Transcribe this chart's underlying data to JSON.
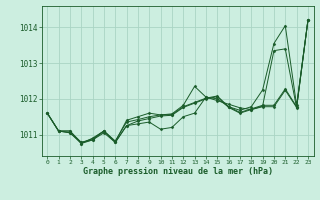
{
  "title": "Graphe pression niveau de la mer (hPa)",
  "bg_color": "#cceee0",
  "plot_bg_color": "#cceee0",
  "grid_color": "#aad4c4",
  "line_color": "#1a5c2a",
  "marker_color": "#1a5c2a",
  "xlim": [
    -0.5,
    23.5
  ],
  "ylim": [
    1010.4,
    1014.6
  ],
  "yticks": [
    1011,
    1012,
    1013,
    1014
  ],
  "xticks": [
    0,
    1,
    2,
    3,
    4,
    5,
    6,
    7,
    8,
    9,
    10,
    11,
    12,
    13,
    14,
    15,
    16,
    17,
    18,
    19,
    20,
    21,
    22,
    23
  ],
  "series": [
    [
      1011.6,
      1011.1,
      1011.1,
      1010.75,
      1010.9,
      1011.1,
      1010.78,
      1011.25,
      1011.3,
      1011.35,
      1011.15,
      1011.2,
      1011.5,
      1011.6,
      1012.05,
      1011.95,
      1011.85,
      1011.75,
      1011.7,
      1011.8,
      1013.35,
      1013.4,
      1011.75,
      1014.2
    ],
    [
      1011.6,
      1011.1,
      1011.1,
      1010.78,
      1010.88,
      1011.1,
      1010.8,
      1011.4,
      1011.5,
      1011.6,
      1011.55,
      1011.58,
      1011.82,
      1012.35,
      1012.05,
      1012.0,
      1011.78,
      1011.68,
      1011.78,
      1012.25,
      1013.55,
      1014.05,
      1011.82,
      1014.2
    ],
    [
      1011.6,
      1011.1,
      1011.05,
      1010.78,
      1010.85,
      1011.1,
      1010.82,
      1011.35,
      1011.42,
      1011.5,
      1011.55,
      1011.56,
      1011.78,
      1011.9,
      1012.02,
      1012.08,
      1011.78,
      1011.62,
      1011.72,
      1011.82,
      1011.82,
      1012.28,
      1011.78,
      1014.2
    ],
    [
      1011.6,
      1011.1,
      1011.05,
      1010.75,
      1010.85,
      1011.05,
      1010.78,
      1011.25,
      1011.38,
      1011.45,
      1011.52,
      1011.54,
      1011.76,
      1011.88,
      1012.0,
      1012.06,
      1011.76,
      1011.6,
      1011.7,
      1011.78,
      1011.78,
      1012.24,
      1011.76,
      1014.2
    ]
  ]
}
